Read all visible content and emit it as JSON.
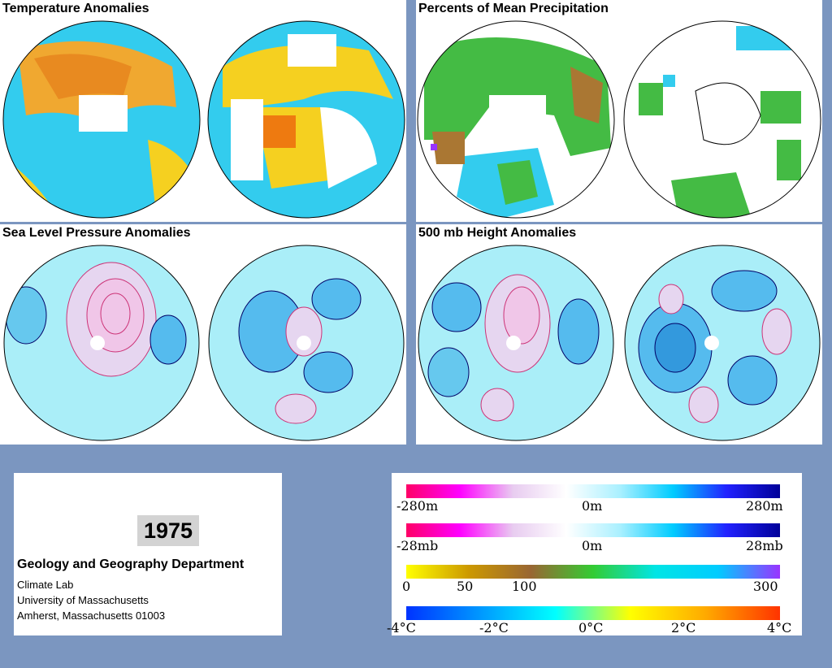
{
  "panels": [
    {
      "title": "Temperature Anomalies"
    },
    {
      "title": "Percents of Mean Precipitation"
    },
    {
      "title": "Sea Level Pressure Anomalies"
    },
    {
      "title": "500 mb Height Anomalies"
    }
  ],
  "info": {
    "year": "1975",
    "department": "Geology and Geography Department",
    "lines": [
      "Climate Lab",
      "University of Massachusetts",
      "Amherst, Massachusetts 01003"
    ]
  },
  "legend": {
    "height": {
      "ticks": [
        "-280m",
        "0m",
        "280m"
      ],
      "colors": [
        "#ff0066",
        "#ff00ff",
        "#e8ccf0",
        "#ffffff",
        "#aaf0ff",
        "#00ccff",
        "#2222ff",
        "#000099"
      ]
    },
    "pressure": {
      "ticks": [
        "-28mb",
        "0m",
        "28mb"
      ],
      "colors": [
        "#ff0066",
        "#ff00ff",
        "#e8ccf0",
        "#ffffff",
        "#aaf0ff",
        "#00ccff",
        "#2222ff",
        "#000099"
      ]
    },
    "precip": {
      "ticks": [
        "0",
        "50",
        "100",
        "300"
      ],
      "colors": [
        "#ffff00",
        "#cc9900",
        "#996633",
        "#33cc33",
        "#00e5e5",
        "#00ccff",
        "#9933ff"
      ]
    },
    "temperature": {
      "ticks": [
        "-4°C",
        "-2°C",
        "0°C",
        "2°C",
        "4°C"
      ],
      "colors": [
        "#0033ff",
        "#0099ff",
        "#00ffff",
        "#ffff00",
        "#ffaa00",
        "#ff3300"
      ]
    }
  }
}
